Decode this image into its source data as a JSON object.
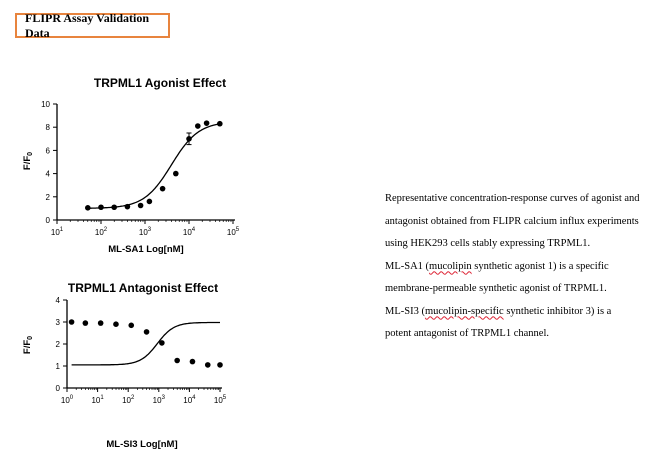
{
  "header": {
    "title": "FLIPR Assay Validation Data"
  },
  "description": {
    "lines": [
      "Representative concentration-response curves of agonist and",
      "antagonist obtained from FLIPR calcium influx experiments",
      "using HEK293 cells stably expressing TRPML1.",
      "ML-SA1 (mucolipin synthetic agonist 1) is a specific",
      "membrane-permeable synthetic agonist of TRPML1.",
      "ML-SI3 (mucolipin-specific synthetic inhibitor 3) is a",
      "potent antagonist of TRPML1 channel."
    ]
  },
  "chart_data": [
    {
      "type": "scatter",
      "title": "TRPML1 Agonist Effect",
      "xlabel": "ML-SA1 Log[nM]",
      "ylabel": "F/F0",
      "xscale": "log",
      "xlim_log10": [
        1,
        5
      ],
      "ylim": [
        0,
        10
      ],
      "xticks_exp": [
        "1",
        "2",
        "3",
        "4",
        "5"
      ],
      "yticks": [
        "0",
        "2",
        "4",
        "6",
        "8",
        "10"
      ],
      "x_log10": [
        1.7,
        2.0,
        2.3,
        2.6,
        2.9,
        3.1,
        3.4,
        3.7,
        4.0,
        4.2,
        4.4,
        4.7
      ],
      "y": [
        1.05,
        1.1,
        1.1,
        1.15,
        1.25,
        1.6,
        2.7,
        4.0,
        7.0,
        8.1,
        8.35,
        8.3
      ],
      "fit": {
        "bottom": 1.0,
        "top": 8.5,
        "log_ec50": 3.6,
        "hill": 1.4
      }
    },
    {
      "type": "scatter",
      "title": "TRPML1 Antagonist Effect",
      "xlabel": "ML-SI3 Log[nM]",
      "ylabel": "F/F0",
      "xscale": "log",
      "xlim_log10": [
        0,
        5
      ],
      "ylim": [
        0,
        4
      ],
      "xticks_exp": [
        "0",
        "1",
        "2",
        "3",
        "4",
        "5"
      ],
      "yticks": [
        "0",
        "1",
        "2",
        "3",
        "4"
      ],
      "x_log10": [
        0.15,
        0.6,
        1.1,
        1.6,
        2.1,
        2.6,
        3.1,
        3.6,
        4.1,
        4.6,
        5.0
      ],
      "y": [
        3.0,
        2.95,
        2.95,
        2.9,
        2.85,
        2.55,
        2.05,
        1.25,
        1.2,
        1.05,
        1.05
      ],
      "fit": {
        "bottom": 1.05,
        "top": 2.98,
        "log_ec50": 2.95,
        "hill": 1.6
      }
    }
  ]
}
